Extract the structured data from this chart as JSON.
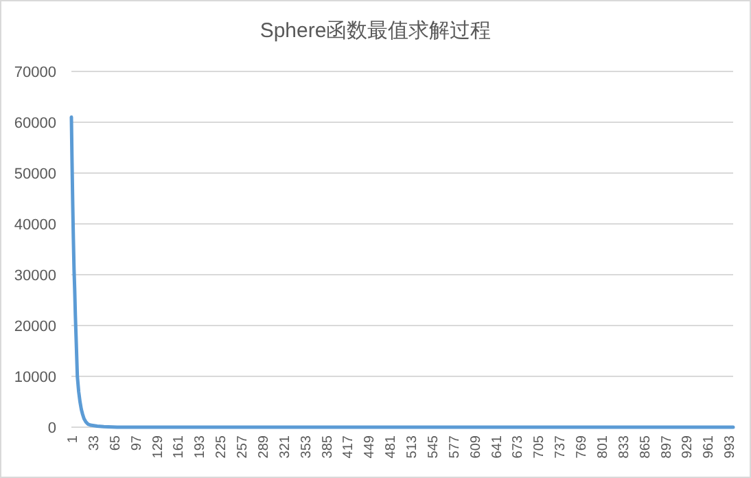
{
  "chart_data": {
    "type": "line",
    "title": "Sphere函数最值求解过程",
    "x": [
      1,
      2,
      3,
      4,
      5,
      6,
      7,
      8,
      9,
      10,
      12,
      14,
      16,
      18,
      20,
      23,
      26,
      30,
      35,
      40,
      50,
      70,
      100,
      200,
      400,
      600,
      800,
      1000
    ],
    "series": [
      {
        "color": "#5b9bd5",
        "values": [
          61000,
          52000,
          44000,
          37000,
          31000,
          27000,
          22000,
          18000,
          14000,
          10000,
          7000,
          5000,
          3500,
          2500,
          1700,
          1000,
          600,
          400,
          300,
          200,
          100,
          0,
          0,
          0,
          0,
          0,
          0,
          0
        ]
      }
    ],
    "xlim": [
      1,
      1000
    ],
    "xticks": [
      1,
      33,
      65,
      97,
      129,
      161,
      193,
      225,
      257,
      289,
      321,
      353,
      385,
      417,
      449,
      481,
      513,
      545,
      577,
      609,
      641,
      673,
      705,
      737,
      769,
      801,
      833,
      865,
      897,
      929,
      961,
      993
    ],
    "ylim": [
      0,
      70000
    ],
    "yticks": [
      0,
      10000,
      20000,
      30000,
      40000,
      50000,
      60000,
      70000
    ],
    "grid": "y",
    "marker": "none",
    "line_style": "solid"
  }
}
